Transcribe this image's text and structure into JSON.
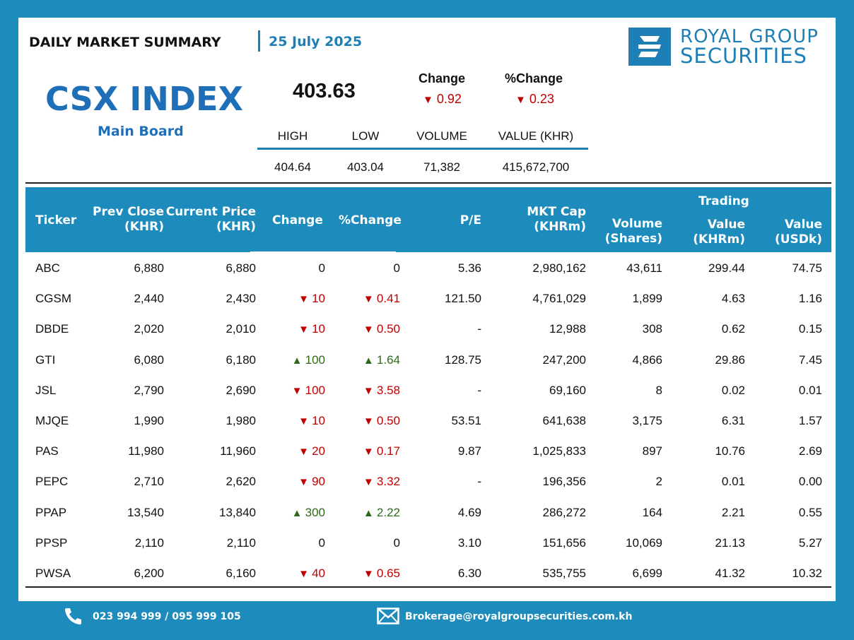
{
  "header": {
    "title": "DAILY MARKET SUMMARY",
    "date": "25 July 2025",
    "logo_line1": "ROYAL GROUP",
    "logo_line2": "SECURITIES"
  },
  "index": {
    "name": "CSX INDEX",
    "board": "Main Board",
    "value": "403.63",
    "change_label": "Change",
    "change_value": "0.92",
    "pct_change_label": "%Change",
    "pct_change_value": "0.23",
    "direction": "down",
    "stats_headers": [
      "HIGH",
      "LOW",
      "VOLUME",
      "VALUE (KHR)"
    ],
    "stats_values": [
      "404.64",
      "403.04",
      "71,382",
      "415,672,700"
    ]
  },
  "table": {
    "headers": {
      "ticker": "Ticker",
      "prev_close_1": "Prev Close",
      "prev_close_2": "(KHR)",
      "current_price_1": "Current Price",
      "current_price_2": "(KHR)",
      "change": "Change",
      "pct_change": "%Change",
      "pe": "P/E",
      "mkt_cap_1": "MKT Cap",
      "mkt_cap_2": "(KHRm)",
      "volume_1": "Volume",
      "volume_2": "(Shares)",
      "trading": "Trading",
      "value_khr_1": "Value",
      "value_khr_2": "(KHRm)",
      "value_usd_1": "Value",
      "value_usd_2": "(USDk)"
    },
    "rows": [
      {
        "ticker": "ABC",
        "prev": "6,880",
        "cur": "6,880",
        "dir": "flat",
        "chg": "0",
        "pct": "0",
        "pe": "5.36",
        "cap": "2,980,162",
        "vol": "43,611",
        "vkhr": "299.44",
        "vusd": "74.75"
      },
      {
        "ticker": "CGSM",
        "prev": "2,440",
        "cur": "2,430",
        "dir": "down",
        "chg": "10",
        "pct": "0.41",
        "pe": "121.50",
        "cap": "4,761,029",
        "vol": "1,899",
        "vkhr": "4.63",
        "vusd": "1.16"
      },
      {
        "ticker": "DBDE",
        "prev": "2,020",
        "cur": "2,010",
        "dir": "down",
        "chg": "10",
        "pct": "0.50",
        "pe": "-",
        "cap": "12,988",
        "vol": "308",
        "vkhr": "0.62",
        "vusd": "0.15"
      },
      {
        "ticker": "GTI",
        "prev": "6,080",
        "cur": "6,180",
        "dir": "up",
        "chg": "100",
        "pct": "1.64",
        "pe": "128.75",
        "cap": "247,200",
        "vol": "4,866",
        "vkhr": "29.86",
        "vusd": "7.45"
      },
      {
        "ticker": "JSL",
        "prev": "2,790",
        "cur": "2,690",
        "dir": "down",
        "chg": "100",
        "pct": "3.58",
        "pe": "-",
        "cap": "69,160",
        "vol": "8",
        "vkhr": "0.02",
        "vusd": "0.01"
      },
      {
        "ticker": "MJQE",
        "prev": "1,990",
        "cur": "1,980",
        "dir": "down",
        "chg": "10",
        "pct": "0.50",
        "pe": "53.51",
        "cap": "641,638",
        "vol": "3,175",
        "vkhr": "6.31",
        "vusd": "1.57"
      },
      {
        "ticker": "PAS",
        "prev": "11,980",
        "cur": "11,960",
        "dir": "down",
        "chg": "20",
        "pct": "0.17",
        "pe": "9.87",
        "cap": "1,025,833",
        "vol": "897",
        "vkhr": "10.76",
        "vusd": "2.69"
      },
      {
        "ticker": "PEPC",
        "prev": "2,710",
        "cur": "2,620",
        "dir": "down",
        "chg": "90",
        "pct": "3.32",
        "pe": "-",
        "cap": "196,356",
        "vol": "2",
        "vkhr": "0.01",
        "vusd": "0.00"
      },
      {
        "ticker": "PPAP",
        "prev": "13,540",
        "cur": "13,840",
        "dir": "up",
        "chg": "300",
        "pct": "2.22",
        "pe": "4.69",
        "cap": "286,272",
        "vol": "164",
        "vkhr": "2.21",
        "vusd": "0.55"
      },
      {
        "ticker": "PPSP",
        "prev": "2,110",
        "cur": "2,110",
        "dir": "flat",
        "chg": "0",
        "pct": "0",
        "pe": "3.10",
        "cap": "151,656",
        "vol": "10,069",
        "vkhr": "21.13",
        "vusd": "5.27"
      },
      {
        "ticker": "PWSA",
        "prev": "6,200",
        "cur": "6,160",
        "dir": "down",
        "chg": "40",
        "pct": "0.65",
        "pe": "6.30",
        "cap": "535,755",
        "vol": "6,699",
        "vkhr": "41.32",
        "vusd": "10.32"
      }
    ]
  },
  "footer": {
    "phone": "023 994 999 / 095 999 105",
    "email": "Brokerage@royalgroupsecurities.com.kh"
  },
  "colors": {
    "brand_blue": "#1e8bbd",
    "down_red": "#c00000",
    "up_green": "#2d6a1a"
  },
  "icons": {
    "phone": "phone-icon",
    "email": "mail-icon",
    "logo": "royal-group-logo-icon"
  }
}
